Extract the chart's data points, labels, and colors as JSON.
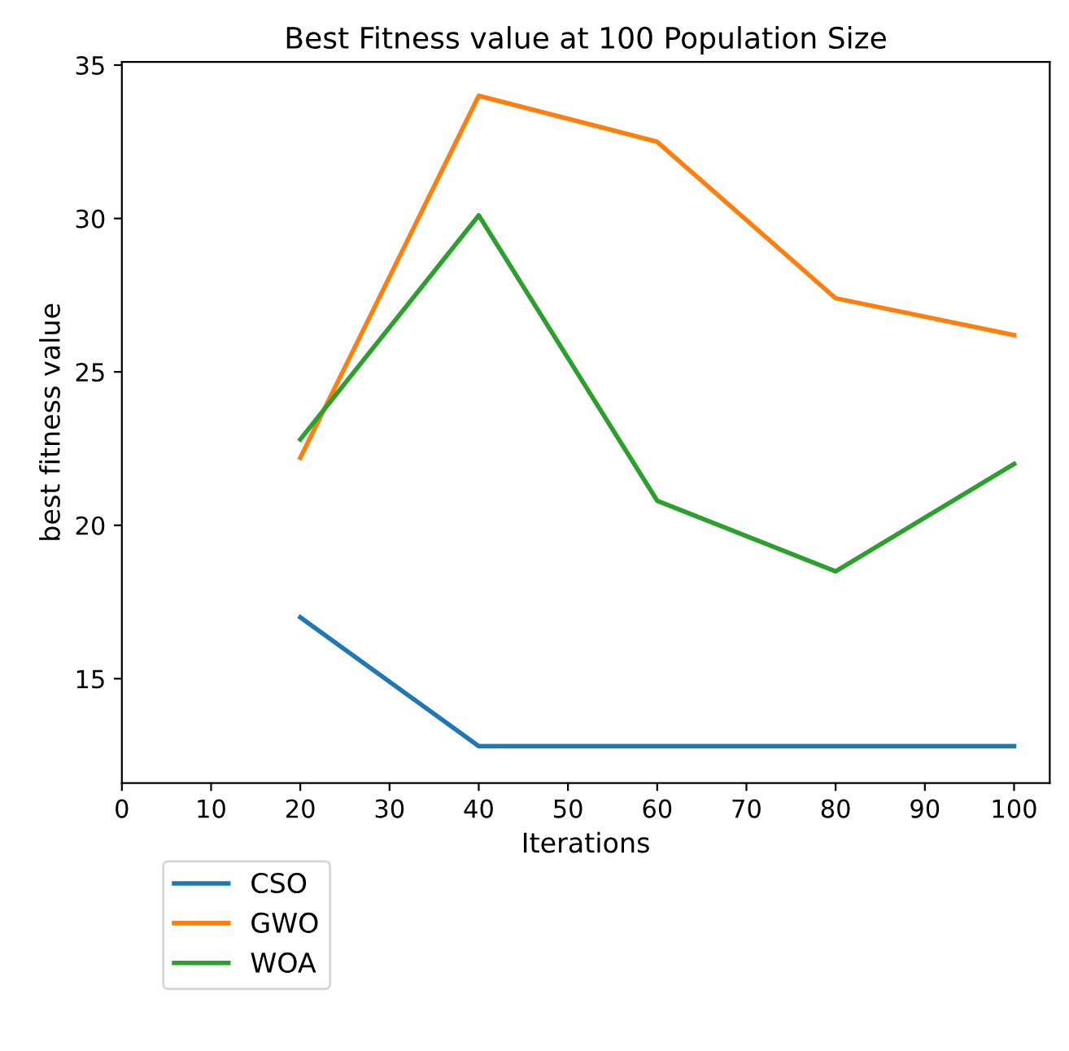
{
  "chart_data": {
    "type": "line",
    "title": "Best Fitness value at 100 Population Size",
    "xlabel": "Iterations",
    "ylabel": "best fitness value",
    "x": [
      20,
      40,
      60,
      80,
      100
    ],
    "series": [
      {
        "name": "CSO",
        "color": "#1f77b4",
        "values": [
          17.0,
          12.8,
          12.8,
          12.8,
          12.8
        ]
      },
      {
        "name": "GWO",
        "color": "#ff7f0e",
        "values": [
          22.2,
          34.0,
          32.5,
          27.4,
          26.2
        ]
      },
      {
        "name": "WOA",
        "color": "#2ca02c",
        "values": [
          22.8,
          30.1,
          20.8,
          18.5,
          22.0
        ]
      }
    ],
    "xlim": [
      0,
      104
    ],
    "ylim": [
      11.6,
      35.1
    ],
    "xticks": [
      0,
      10,
      20,
      30,
      40,
      50,
      60,
      70,
      80,
      90,
      100
    ],
    "yticks": [
      15,
      20,
      25,
      30,
      35
    ],
    "legend": "bottom left",
    "grid": false
  }
}
